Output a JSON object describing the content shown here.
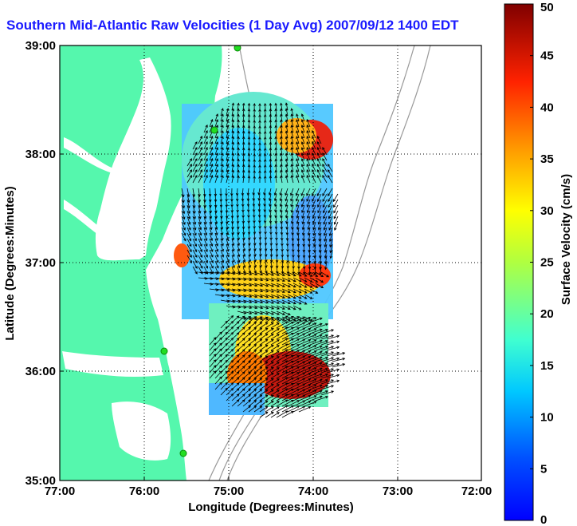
{
  "title": "Southern Mid-Atlantic Raw Velocities (1 Day Avg) 2007/09/12 1400 EDT",
  "map": {
    "xlabel": "Longitude (Degrees:Minutes)",
    "ylabel": "Latitude (Degrees:Minutes)",
    "x_ticks": [
      "77:00",
      "76:00",
      "75:00",
      "74:00",
      "73:00",
      "72:00"
    ],
    "y_ticks": [
      "39:00",
      "38:00",
      "37:00",
      "36:00",
      "35:00"
    ],
    "lon_range": [
      -77,
      -72
    ],
    "lat_range": [
      35,
      39
    ],
    "grid": true,
    "land_color": "#55f7ad",
    "station_color": "#22dd22"
  },
  "colorbar": {
    "label": "Surface Velocity (cm/s)",
    "ticks": [
      "0",
      "5",
      "10",
      "15",
      "20",
      "25",
      "30",
      "35",
      "40",
      "45",
      "50"
    ],
    "range": [
      0,
      50
    ],
    "colormap": "jet"
  }
}
